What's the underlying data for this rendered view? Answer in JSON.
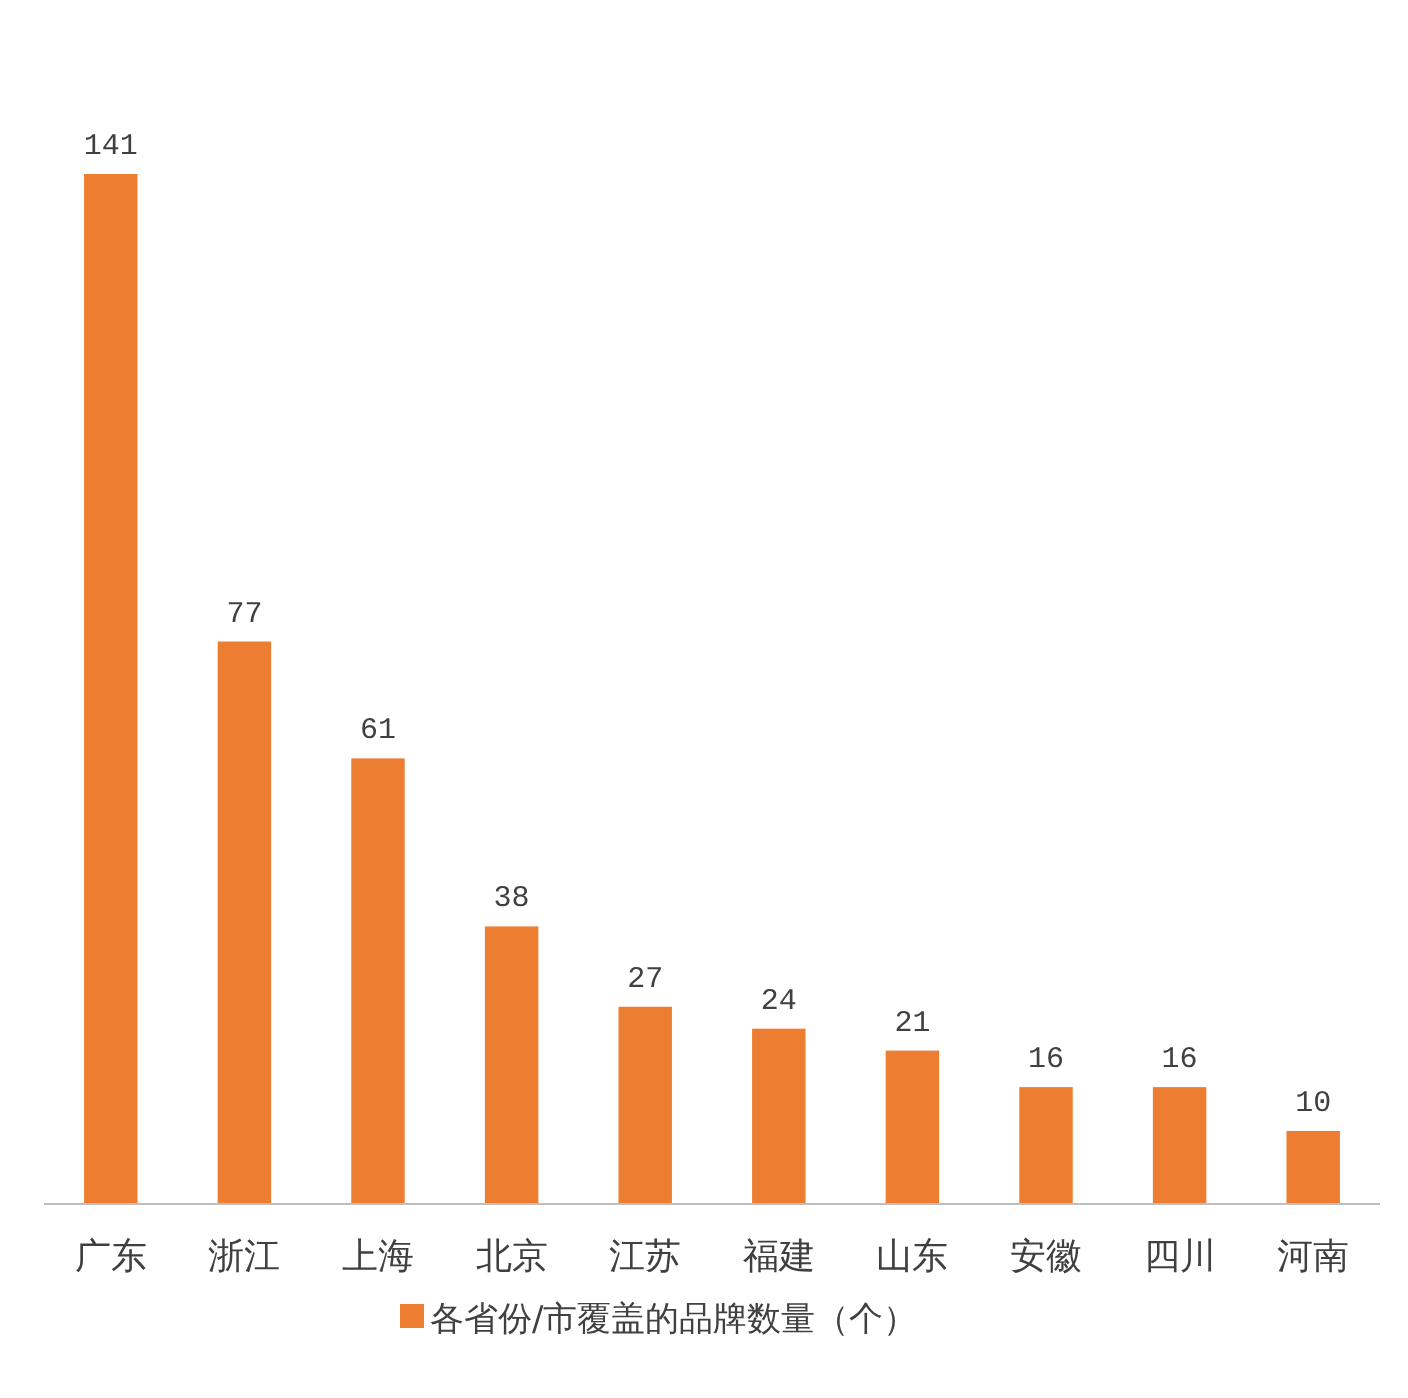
{
  "chart_data": {
    "type": "bar",
    "categories": [
      "广东",
      "浙江",
      "上海",
      "北京",
      "江苏",
      "福建",
      "山东",
      "安徽",
      "四川",
      "河南"
    ],
    "series": [
      {
        "name": "各省份/市覆盖的品牌数量（个）",
        "color": "#ed7d31",
        "values": [
          141,
          77,
          61,
          38,
          27,
          24,
          21,
          16,
          16,
          10
        ]
      }
    ],
    "data_labels": true,
    "legend": "bottom"
  }
}
